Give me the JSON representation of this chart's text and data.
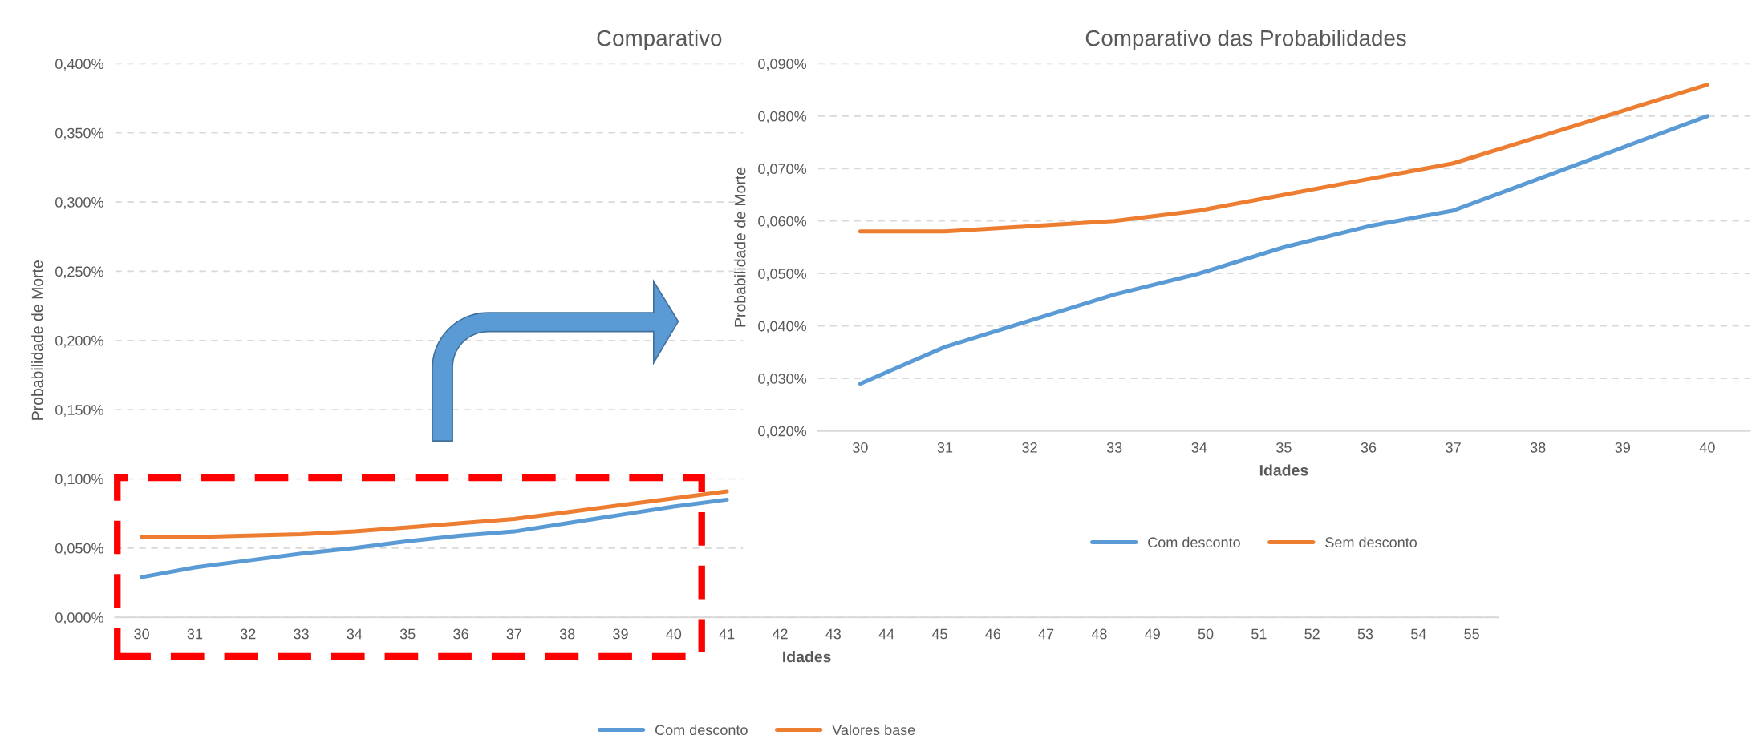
{
  "chart_data": [
    {
      "type": "line",
      "title": "Comparativo",
      "xlabel": "Idades",
      "ylabel": "Probabilidade de Morte",
      "categories": [
        "30",
        "31",
        "32",
        "33",
        "34",
        "35",
        "36",
        "37",
        "38",
        "39",
        "40",
        "41",
        "42",
        "43",
        "44",
        "45",
        "46",
        "47",
        "48",
        "49",
        "50",
        "51",
        "52",
        "53",
        "54",
        "55"
      ],
      "series": [
        {
          "name": "Com desconto",
          "color": "#5b9bd5",
          "values": [
            0.029,
            0.036,
            0.041,
            0.046,
            0.05,
            0.055,
            0.059,
            0.062,
            0.068,
            0.074,
            0.08,
            0.085,
            null,
            null,
            null,
            null,
            null,
            null,
            null,
            null,
            null,
            null,
            null,
            null,
            null,
            null
          ]
        },
        {
          "name": "Valores base",
          "color": "#ed7d31",
          "values": [
            0.058,
            0.058,
            0.059,
            0.06,
            0.062,
            0.065,
            0.068,
            0.071,
            0.076,
            0.081,
            0.086,
            0.091,
            null,
            null,
            null,
            null,
            null,
            null,
            null,
            null,
            null,
            null,
            null,
            null,
            null,
            null
          ]
        }
      ],
      "ylim": [
        0,
        0.4
      ],
      "yticks": [
        {
          "value": 0,
          "label": "0,000%"
        },
        {
          "value": 0.05,
          "label": "0,050%"
        },
        {
          "value": 0.1,
          "label": "0,100%"
        },
        {
          "value": 0.15,
          "label": "0,150%"
        },
        {
          "value": 0.2,
          "label": "0,200%"
        },
        {
          "value": 0.25,
          "label": "0,250%"
        },
        {
          "value": 0.3,
          "label": "0,300%"
        },
        {
          "value": 0.35,
          "label": "0,350%"
        },
        {
          "value": 0.4,
          "label": "0,400%"
        }
      ],
      "grid": "y",
      "legend": "bottom"
    },
    {
      "type": "line",
      "title": "Comparativo das Probabilidades",
      "xlabel": "Idades",
      "ylabel": "Probabilidade de Morte",
      "categories": [
        "30",
        "31",
        "32",
        "33",
        "34",
        "35",
        "36",
        "37",
        "38",
        "39",
        "40"
      ],
      "series": [
        {
          "name": "Com desconto",
          "color": "#5b9bd5",
          "values": [
            0.029,
            0.036,
            0.041,
            0.046,
            0.05,
            0.055,
            0.059,
            0.062,
            0.068,
            0.074,
            0.08
          ]
        },
        {
          "name": "Sem desconto",
          "color": "#ed7d31",
          "values": [
            0.058,
            0.058,
            0.059,
            0.06,
            0.062,
            0.065,
            0.068,
            0.071,
            0.076,
            0.081,
            0.086
          ]
        }
      ],
      "ylim": [
        0.02,
        0.09
      ],
      "yticks": [
        {
          "value": 0.02,
          "label": "0,020%"
        },
        {
          "value": 0.03,
          "label": "0,030%"
        },
        {
          "value": 0.04,
          "label": "0,040%"
        },
        {
          "value": 0.05,
          "label": "0,050%"
        },
        {
          "value": 0.06,
          "label": "0,060%"
        },
        {
          "value": 0.07,
          "label": "0,070%"
        },
        {
          "value": 0.08,
          "label": "0,080%"
        },
        {
          "value": 0.09,
          "label": "0,090%"
        }
      ],
      "grid": "y",
      "legend": "bottom"
    }
  ]
}
